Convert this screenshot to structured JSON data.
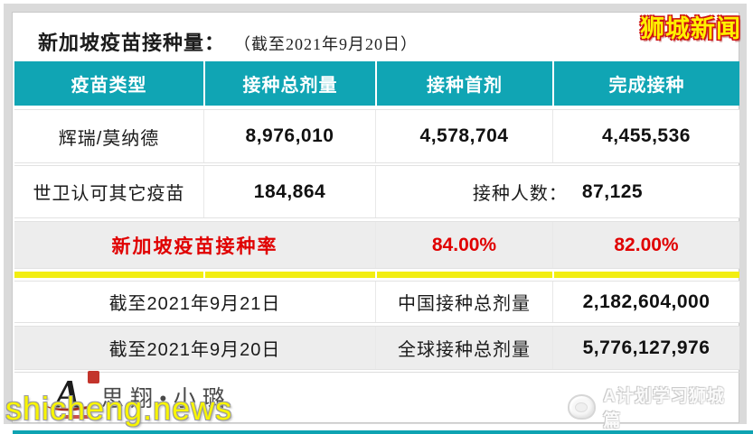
{
  "badge": {
    "text": "狮城新闻"
  },
  "title": {
    "main": "新加坡疫苗接种量：",
    "note": "（截至2021年9月20日）"
  },
  "table": {
    "columns": [
      "疫苗类型",
      "接种总剂量",
      "接种首剂",
      "完成接种"
    ],
    "rows": {
      "pfizer_moderna": {
        "label": "辉瑞/莫纳德",
        "total_doses": "8,976,010",
        "first_dose": "4,578,704",
        "completed": "4,455,536"
      },
      "who_other": {
        "label": "世卫认可其它疫苗",
        "total_doses": "184,864",
        "people_label": "接种人数：",
        "people_count": "87,125"
      },
      "sg_rate": {
        "label": "新加坡疫苗接种率",
        "first_dose_rate": "84.00%",
        "completed_rate": "82.00%"
      },
      "china": {
        "as_of": "截至2021年9月21日",
        "label": "中国接种总剂量",
        "value": "2,182,604,000"
      },
      "global": {
        "as_of": "截至2021年9月20日",
        "label": "全球接种总剂量",
        "value": "5,776,127,976"
      }
    }
  },
  "footer": {
    "logo_letter": "A",
    "brand": "思翔•小璐",
    "watermark": "shicheng.news",
    "channel": "A计划学习狮城篇"
  },
  "colors": {
    "header_teal": "#10A5B4",
    "divider_yellow": "#F2EE12",
    "row_gray": "#EDEDED",
    "accent_red": "#E00000",
    "badge_yellow": "#FFF100",
    "badge_outline_red": "#CE1212"
  },
  "chart_data": {
    "type": "table",
    "title": "新加坡疫苗接种量（截至2021年9月20日）",
    "columns": [
      "疫苗类型",
      "接种总剂量",
      "接种首剂",
      "完成接种"
    ],
    "rows": [
      [
        "辉瑞/莫纳德",
        "8,976,010",
        "4,578,704",
        "4,455,536"
      ],
      [
        "世卫认可其它疫苗",
        "184,864",
        "接种人数：",
        "87,125"
      ],
      [
        "新加坡疫苗接种率",
        "",
        "84.00%",
        "82.00%"
      ],
      [
        "截至2021年9月21日",
        "",
        "中国接种总剂量",
        "2,182,604,000"
      ],
      [
        "截至2021年9月20日",
        "",
        "全球接种总剂量",
        "5,776,127,976"
      ]
    ]
  }
}
